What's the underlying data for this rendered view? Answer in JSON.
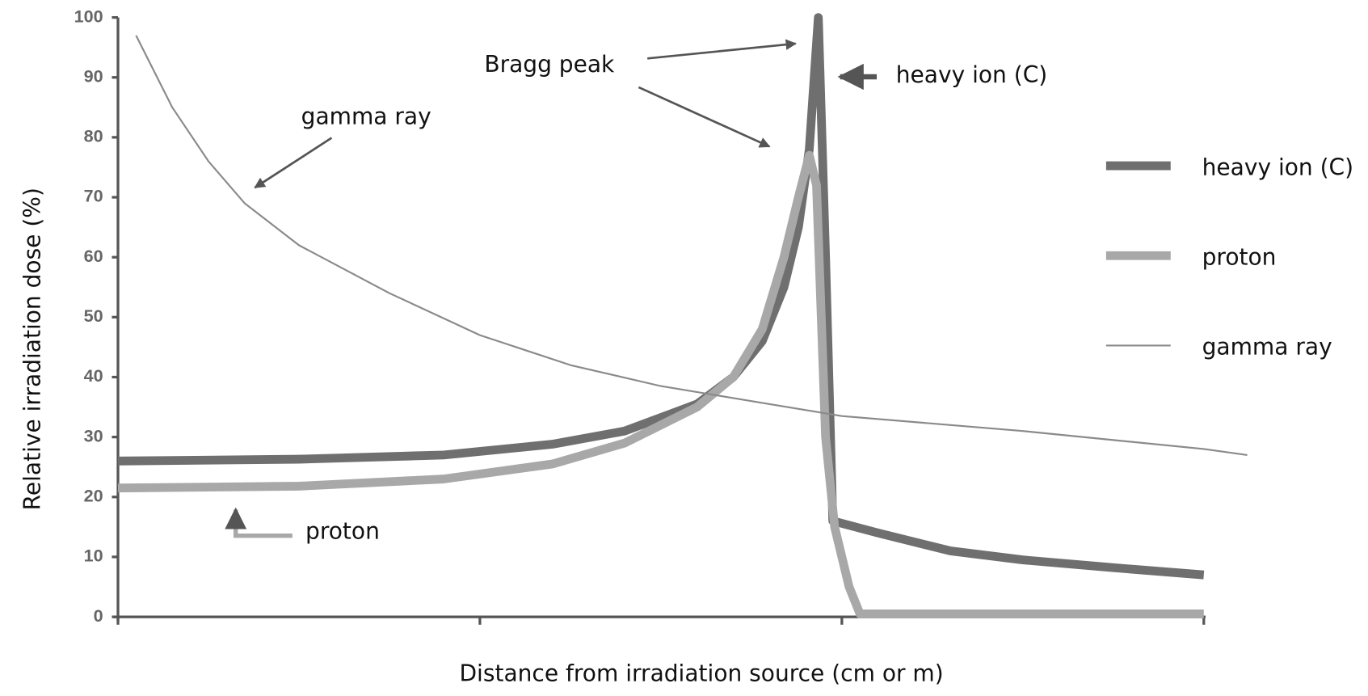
{
  "chart_data": {
    "type": "line",
    "ylabel": "Relative irradiation dose (%)",
    "xlabel": "Distance from irradiation source (cm or m)",
    "xlim": [
      0,
      3.15
    ],
    "xticks": [
      0,
      1,
      2,
      3
    ],
    "ylim": [
      0,
      100
    ],
    "yticks": [
      0,
      10,
      20,
      30,
      40,
      50,
      60,
      70,
      80,
      90,
      100
    ],
    "series": [
      {
        "name": "heavy ion (C)",
        "color": "#6f6f6f",
        "x": [
          0,
          0.5,
          0.9,
          1.2,
          1.4,
          1.6,
          1.7,
          1.78,
          1.84,
          1.88,
          1.91,
          1.935,
          1.955,
          1.975,
          2.1,
          2.3,
          2.5,
          2.75,
          3.0
        ],
        "values": [
          26,
          26.3,
          27,
          28.8,
          31,
          35.5,
          40,
          46,
          55,
          65,
          78,
          100,
          60,
          16,
          14,
          11,
          9.5,
          8.2,
          7
        ]
      },
      {
        "name": "proton",
        "color": "#a8a8a8",
        "x": [
          0,
          0.5,
          0.9,
          1.2,
          1.4,
          1.6,
          1.7,
          1.78,
          1.84,
          1.88,
          1.91,
          1.93,
          1.955,
          1.98,
          2.02,
          2.05,
          3.0
        ],
        "values": [
          21.5,
          21.8,
          23,
          25.5,
          29,
          35,
          40,
          48,
          60,
          70,
          77,
          72,
          30,
          15,
          5,
          0.5,
          0.5
        ]
      },
      {
        "name": "gamma ray",
        "color": "#8a8a8a",
        "x": [
          0.05,
          0.15,
          0.25,
          0.35,
          0.5,
          0.75,
          1.0,
          1.25,
          1.5,
          1.75,
          2.0,
          2.5,
          3.0,
          3.12
        ],
        "values": [
          97,
          85,
          76,
          69,
          62,
          54,
          47,
          42,
          38.5,
          36,
          33.5,
          31,
          28,
          27
        ]
      }
    ],
    "annotations": [
      "Bragg peak",
      "gamma ray",
      "heavy ion (C)",
      "proton"
    ]
  }
}
